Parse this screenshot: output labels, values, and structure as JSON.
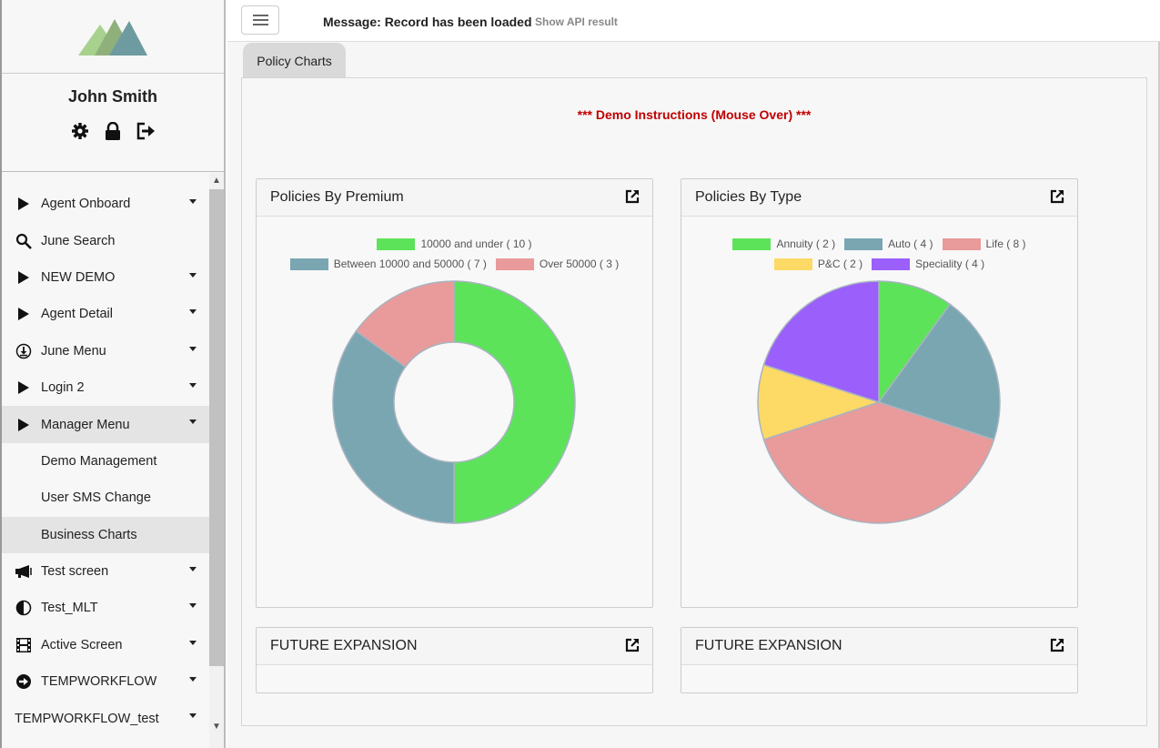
{
  "user": {
    "name": "John Smith"
  },
  "topbar": {
    "message": "Message: Record has been loaded",
    "api_link": "Show API result"
  },
  "tab": {
    "label": "Policy Charts"
  },
  "demo_instructions": "*** Demo Instructions (Mouse Over) ***",
  "menu": {
    "items": [
      {
        "label": "Agent Onboard",
        "icon": "play-icon"
      },
      {
        "label": "June Search",
        "icon": "search-icon"
      },
      {
        "label": "NEW DEMO",
        "icon": "play-icon"
      },
      {
        "label": "Agent Detail",
        "icon": "play-icon"
      },
      {
        "label": "June Menu",
        "icon": "download-circle-icon"
      },
      {
        "label": "Login 2",
        "icon": "play-icon"
      },
      {
        "label": "Manager Menu",
        "icon": "play-icon"
      },
      {
        "label": "Demo Management"
      },
      {
        "label": "User SMS Change"
      },
      {
        "label": "Business Charts"
      },
      {
        "label": "Test screen",
        "icon": "megaphone-icon"
      },
      {
        "label": "Test_MLT",
        "icon": "half-circle-icon"
      },
      {
        "label": "Active Screen",
        "icon": "film-icon"
      },
      {
        "label": "TEMPWORKFLOW",
        "icon": "arrow-circle-icon"
      },
      {
        "label": "TEMPWORKFLOW_test"
      }
    ]
  },
  "cards": {
    "premium": {
      "title": "Policies By Premium"
    },
    "type": {
      "title": "Policies By Type"
    },
    "future1": {
      "title": "FUTURE EXPANSION"
    },
    "future2": {
      "title": "FUTURE EXPANSION"
    }
  },
  "colors": {
    "green": "#5de35a",
    "teal": "#79a6b1",
    "pink": "#e99a9a",
    "yellow": "#fdd966",
    "purple": "#9b5ffc",
    "accent_red": "#c00000"
  },
  "chart_data": [
    {
      "type": "pie",
      "donut": true,
      "title": "Policies By Premium",
      "categories": [
        "10000 and under",
        "Between 10000 and 50000",
        "Over 50000"
      ],
      "values": [
        10,
        7,
        3
      ],
      "legend_labels": [
        "10000 and under ( 10 )",
        "Between 10000 and 50000 ( 7 )",
        "Over 50000 ( 3 )"
      ],
      "colors": [
        "#5de35a",
        "#79a6b1",
        "#e99a9a"
      ],
      "legend": "top"
    },
    {
      "type": "pie",
      "donut": false,
      "title": "Policies By Type",
      "categories": [
        "Annuity",
        "Auto",
        "Life",
        "P&C",
        "Speciality"
      ],
      "values": [
        2,
        4,
        8,
        2,
        4
      ],
      "legend_labels": [
        "Annuity ( 2 )",
        "Auto ( 4 )",
        "Life ( 8 )",
        "P&C ( 2 )",
        "Speciality ( 4 )"
      ],
      "colors": [
        "#5de35a",
        "#79a6b1",
        "#e99a9a",
        "#fdd966",
        "#9b5ffc"
      ],
      "legend": "top"
    }
  ]
}
